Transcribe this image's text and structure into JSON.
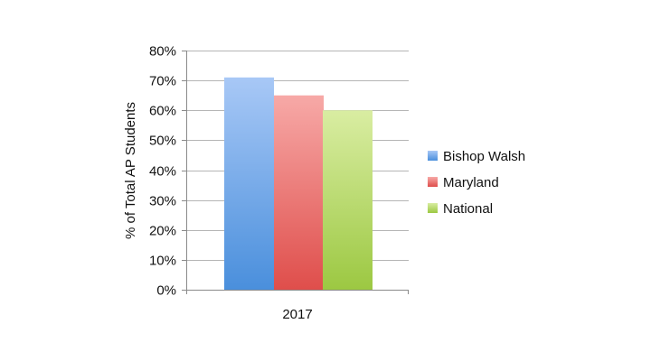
{
  "chart_data": {
    "type": "bar",
    "categories": [
      "2017"
    ],
    "series": [
      {
        "name": "Bishop Walsh",
        "values": [
          71
        ],
        "color_top": "#a8c8f6",
        "color_bottom": "#4a8fdc",
        "legend_color": "#5a9be0"
      },
      {
        "name": "Maryland",
        "values": [
          65
        ],
        "color_top": "#f7a9a7",
        "color_bottom": "#df4e4b",
        "legend_color": "#e2625f"
      },
      {
        "name": "National",
        "values": [
          60
        ],
        "color_top": "#d9eda2",
        "color_bottom": "#9cc842",
        "legend_color": "#a9d054"
      }
    ],
    "ylabel": "% of Total AP Students",
    "ylim": [
      0,
      80
    ],
    "yticks": [
      0,
      10,
      20,
      30,
      40,
      50,
      60,
      70,
      80
    ],
    "ytick_labels": [
      "0%",
      "10%",
      "20%",
      "30%",
      "40%",
      "50%",
      "60%",
      "70%",
      "80%"
    ],
    "grid": true,
    "legend_position": "right"
  }
}
